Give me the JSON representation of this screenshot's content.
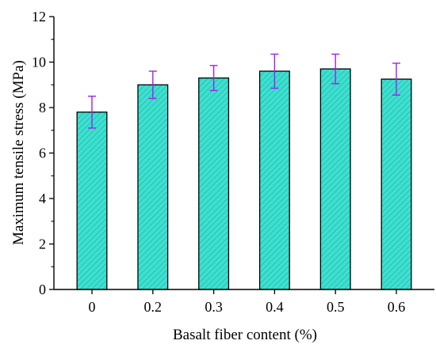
{
  "chart_data": {
    "type": "bar",
    "title": "",
    "xlabel": "Basalt fiber content (%)",
    "ylabel": "Maximum tensile stress (MPa)",
    "categories": [
      "0",
      "0.2",
      "0.3",
      "0.4",
      "0.5",
      "0.6"
    ],
    "series": [
      {
        "values": [
          7.8,
          9.0,
          9.3,
          9.6,
          9.7,
          9.25
        ],
        "error": [
          0.7,
          0.6,
          0.55,
          0.75,
          0.65,
          0.7
        ]
      }
    ],
    "ylim": [
      0,
      12
    ],
    "yticks": [
      0,
      2,
      4,
      6,
      8,
      10,
      12
    ],
    "grid": false,
    "legend": "none",
    "colors": {
      "bar_fill": "#3ee0d0",
      "bar_hatch": "#23b8ac",
      "bar_edge": "#000000",
      "error_bar": "#a020f0"
    }
  }
}
